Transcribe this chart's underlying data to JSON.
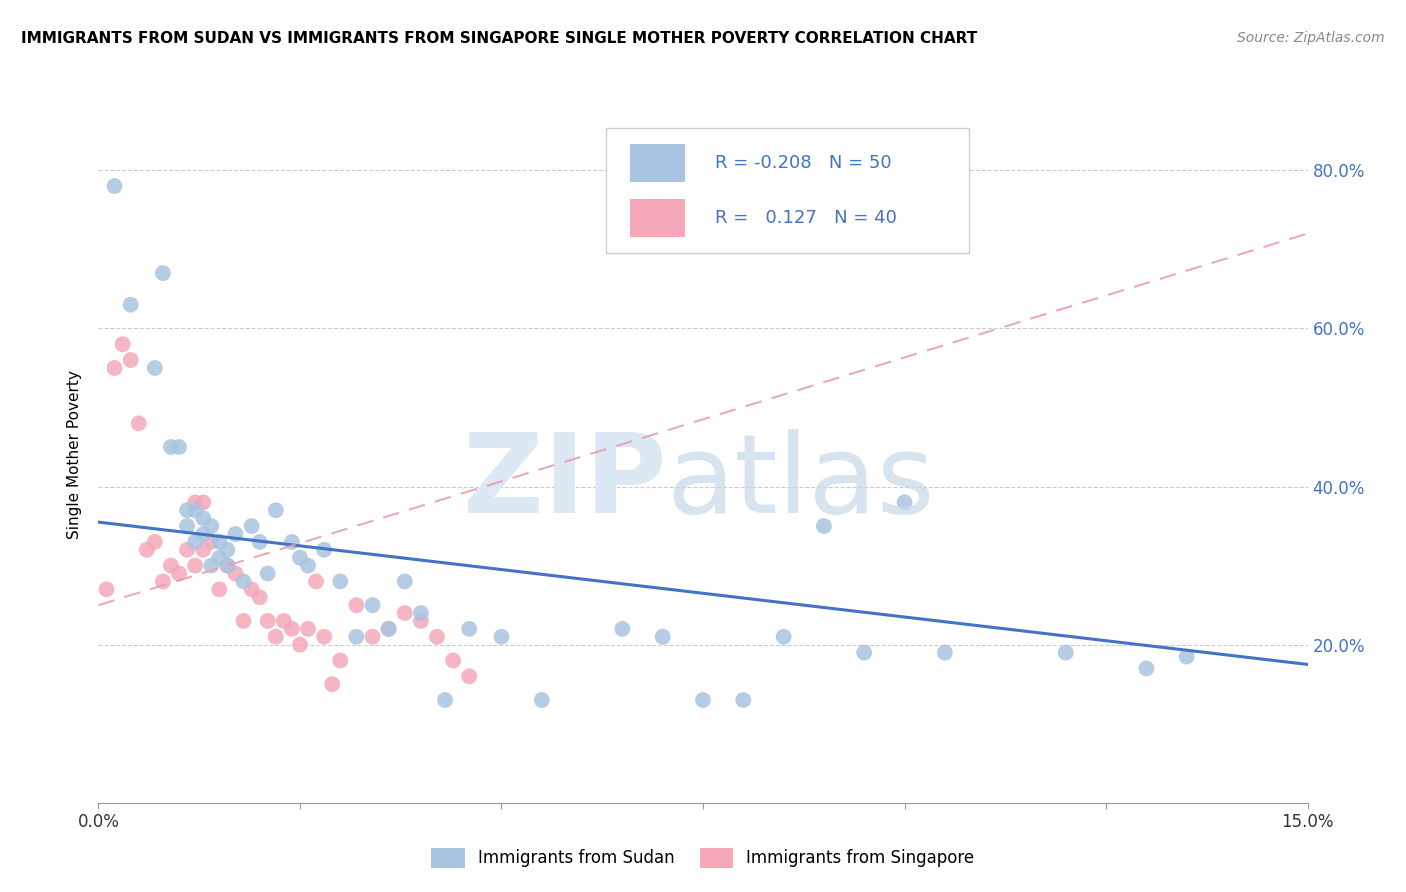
{
  "title": "IMMIGRANTS FROM SUDAN VS IMMIGRANTS FROM SINGAPORE SINGLE MOTHER POVERTY CORRELATION CHART",
  "source": "Source: ZipAtlas.com",
  "ylabel": "Single Mother Poverty",
  "y_ticks": [
    0.2,
    0.4,
    0.6,
    0.8
  ],
  "y_tick_labels": [
    "20.0%",
    "40.0%",
    "60.0%",
    "80.0%"
  ],
  "x_range": [
    0.0,
    0.15
  ],
  "y_range": [
    0.0,
    0.88
  ],
  "x_ticks": [
    0.0,
    0.025,
    0.05,
    0.075,
    0.1,
    0.125,
    0.15
  ],
  "legend_sudan_R": "-0.208",
  "legend_sudan_N": "50",
  "legend_singapore_R": "0.127",
  "legend_singapore_N": "40",
  "sudan_color": "#a8c4e0",
  "singapore_color": "#f4a8b8",
  "sudan_line_color": "#4472c4",
  "singapore_line_color": "#e8a0b0",
  "sudan_line_y0": 0.355,
  "sudan_line_y1": 0.175,
  "singapore_line_y0": 0.25,
  "singapore_line_y1": 0.72,
  "sudan_points_x": [
    0.002,
    0.004,
    0.007,
    0.008,
    0.009,
    0.01,
    0.011,
    0.011,
    0.012,
    0.012,
    0.013,
    0.013,
    0.014,
    0.014,
    0.015,
    0.015,
    0.016,
    0.016,
    0.017,
    0.018,
    0.019,
    0.02,
    0.021,
    0.022,
    0.024,
    0.025,
    0.026,
    0.028,
    0.03,
    0.032,
    0.034,
    0.036,
    0.038,
    0.04,
    0.043,
    0.046,
    0.05,
    0.055,
    0.065,
    0.07,
    0.075,
    0.08,
    0.085,
    0.09,
    0.095,
    0.1,
    0.105,
    0.12,
    0.13,
    0.135
  ],
  "sudan_points_y": [
    0.78,
    0.63,
    0.55,
    0.67,
    0.45,
    0.45,
    0.35,
    0.37,
    0.33,
    0.37,
    0.34,
    0.36,
    0.3,
    0.35,
    0.33,
    0.31,
    0.32,
    0.3,
    0.34,
    0.28,
    0.35,
    0.33,
    0.29,
    0.37,
    0.33,
    0.31,
    0.3,
    0.32,
    0.28,
    0.21,
    0.25,
    0.22,
    0.28,
    0.24,
    0.13,
    0.22,
    0.21,
    0.13,
    0.22,
    0.21,
    0.13,
    0.13,
    0.21,
    0.35,
    0.19,
    0.38,
    0.19,
    0.19,
    0.17,
    0.185
  ],
  "singapore_points_x": [
    0.001,
    0.002,
    0.003,
    0.004,
    0.005,
    0.006,
    0.007,
    0.008,
    0.009,
    0.01,
    0.011,
    0.012,
    0.012,
    0.013,
    0.013,
    0.014,
    0.015,
    0.016,
    0.017,
    0.018,
    0.019,
    0.02,
    0.021,
    0.022,
    0.023,
    0.024,
    0.025,
    0.026,
    0.027,
    0.028,
    0.029,
    0.03,
    0.032,
    0.034,
    0.036,
    0.038,
    0.04,
    0.042,
    0.044,
    0.046
  ],
  "singapore_points_y": [
    0.27,
    0.55,
    0.58,
    0.56,
    0.48,
    0.32,
    0.33,
    0.28,
    0.3,
    0.29,
    0.32,
    0.3,
    0.38,
    0.38,
    0.32,
    0.33,
    0.27,
    0.3,
    0.29,
    0.23,
    0.27,
    0.26,
    0.23,
    0.21,
    0.23,
    0.22,
    0.2,
    0.22,
    0.28,
    0.21,
    0.15,
    0.18,
    0.25,
    0.21,
    0.22,
    0.24,
    0.23,
    0.21,
    0.18,
    0.16
  ]
}
